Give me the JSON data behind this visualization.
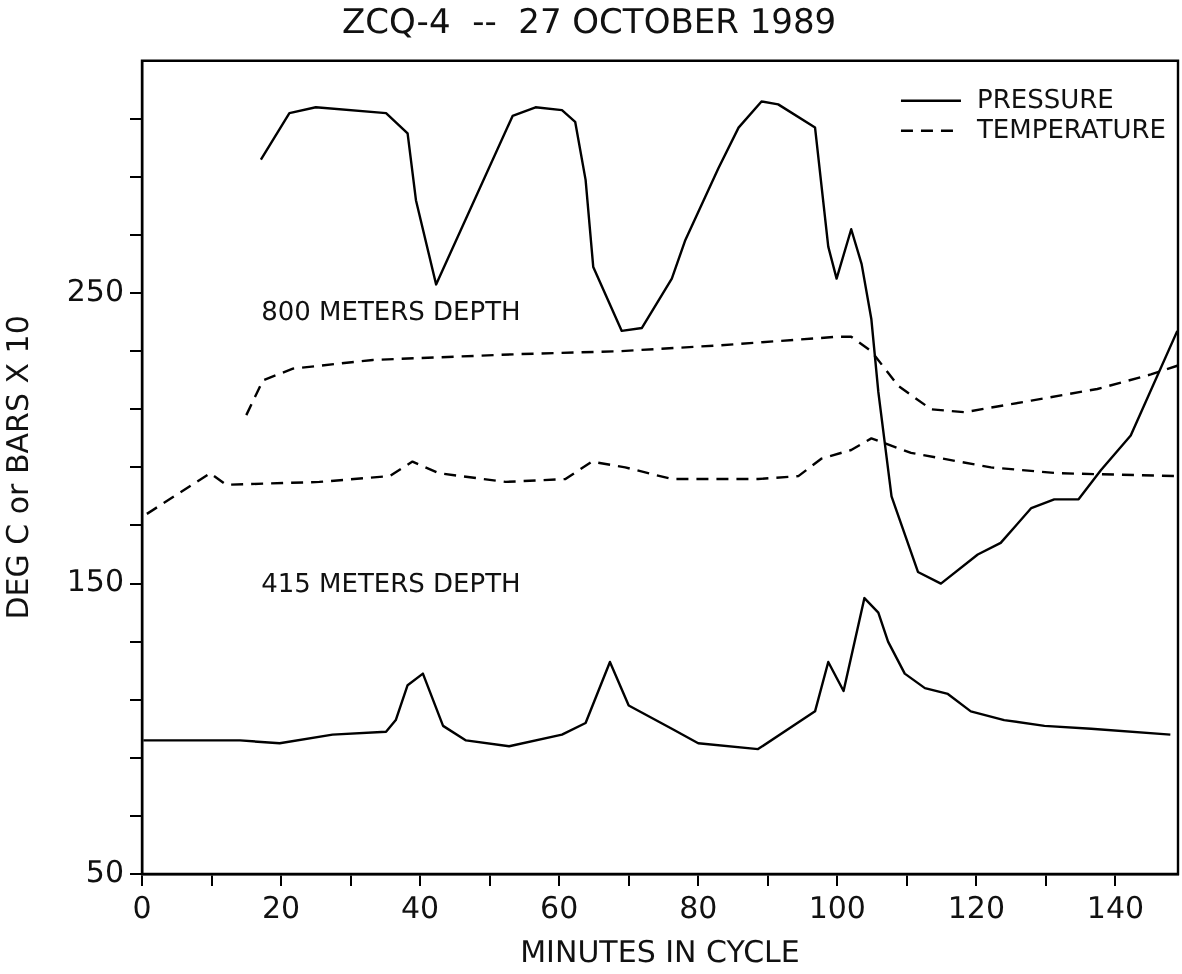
{
  "chart_data": {
    "type": "line",
    "title": "ZCQ-4  --  27 OCTOBER 1989",
    "xlabel": "MINUTES IN CYCLE",
    "ylabel": "DEG C or BARS X 10",
    "annotations": [
      "800 METERS DEPTH",
      "415 METERS DEPTH"
    ],
    "xlim": [
      0,
      149
    ],
    "xticks": [
      0,
      {
        "value": 10,
        "label": null
      },
      20,
      {
        "value": 30,
        "label": null
      },
      40,
      {
        "value": 50,
        "label": null
      },
      60,
      {
        "value": 70,
        "label": null
      },
      80,
      {
        "value": 90,
        "label": null
      },
      100,
      {
        "value": 110,
        "label": null
      },
      120,
      {
        "value": 130,
        "label": null
      },
      140
    ],
    "ylim": [
      50,
      330
    ],
    "yticks": [
      50,
      {
        "value": 70,
        "label": null
      },
      {
        "value": 90,
        "label": null
      },
      {
        "value": 110,
        "label": null
      },
      {
        "value": 130,
        "label": null
      },
      150,
      {
        "value": 170,
        "label": null
      },
      {
        "value": 190,
        "label": null
      },
      {
        "value": 210,
        "label": null
      },
      {
        "value": 230,
        "label": null
      },
      250,
      {
        "value": 270,
        "label": null
      },
      {
        "value": 290,
        "label": null
      },
      {
        "value": 310,
        "label": null
      }
    ],
    "grid": false,
    "legend": "top right",
    "series": [
      {
        "name": "PRESSURE",
        "color": "#000000",
        "line_style": "solid",
        "x": [
          17.1,
          21.2,
          25.0,
          35.1,
          38.2,
          39.4,
          42.3,
          53.3,
          56.6,
          60.4,
          62.3,
          63.8,
          64.9,
          69.0,
          71.9,
          76.2,
          78.1,
          82.9,
          85.8,
          89.1,
          91.5,
          96.8,
          98.7,
          99.9,
          102.0,
          103.5,
          104.9,
          105.9,
          107.8,
          111.6,
          114.9,
          120.2,
          123.5,
          127.9,
          131.2,
          134.7,
          137.9,
          142.2,
          148.9
        ],
        "values": [
          296,
          312,
          314,
          312,
          305,
          282,
          253,
          311,
          314,
          313,
          309,
          289,
          259,
          237,
          238,
          255,
          268,
          293,
          307,
          316,
          315,
          307,
          266,
          255,
          272,
          260,
          241,
          216,
          180,
          154,
          150,
          160,
          164,
          176,
          179,
          179,
          189,
          201,
          237
        ]
      },
      {
        "name": "TEMPERATURE",
        "color": "#000000",
        "line_style": "dashed",
        "x": [
          15.0,
          17.4,
          21.7,
          33.2,
          54.2,
          68.6,
          82.9,
          100.1,
          102.0,
          104.9,
          108.8,
          113.5,
          118.3,
          127.9,
          137.4,
          145.1,
          148.9
        ],
        "values": [
          208,
          220,
          224,
          227,
          229,
          230,
          232,
          235,
          235,
          230,
          218,
          210,
          209,
          213,
          217,
          222,
          225
        ]
      },
      {
        "color": "#000000",
        "line_style": "dashed",
        "x": [
          0.7,
          9.8,
          12.1,
          25.5,
          35.6,
          38.9,
          42.7,
          52.3,
          60.9,
          64.7,
          69.5,
          76.2,
          88.6,
          94.4,
          97.7,
          102.0,
          104.9,
          110.6,
          122.1,
          131.7,
          148.9
        ],
        "values": [
          174,
          188,
          184,
          185,
          187,
          192,
          188,
          185,
          186,
          192,
          190,
          186,
          186,
          187,
          193,
          196,
          200,
          195,
          190,
          188,
          187
        ]
      },
      {
        "color": "#000000",
        "line_style": "solid",
        "x": [
          0.2,
          14.1,
          19.8,
          27.4,
          35.1,
          36.5,
          38.2,
          40.4,
          43.3,
          46.6,
          52.8,
          60.4,
          63.8,
          67.3,
          70.0,
          76.2,
          80.0,
          88.6,
          96.8,
          98.7,
          100.9,
          103.9,
          105.9,
          107.3,
          109.7,
          112.6,
          115.9,
          119.2,
          124.0,
          129.8,
          136.5,
          147.9
        ],
        "values": [
          96,
          96,
          95,
          98,
          99,
          103,
          115,
          119,
          101,
          96,
          94,
          98,
          102,
          123,
          108,
          100,
          95,
          93,
          106,
          123,
          113,
          145,
          140,
          130,
          119,
          114,
          112,
          106,
          103,
          101,
          100,
          98
        ]
      }
    ]
  }
}
